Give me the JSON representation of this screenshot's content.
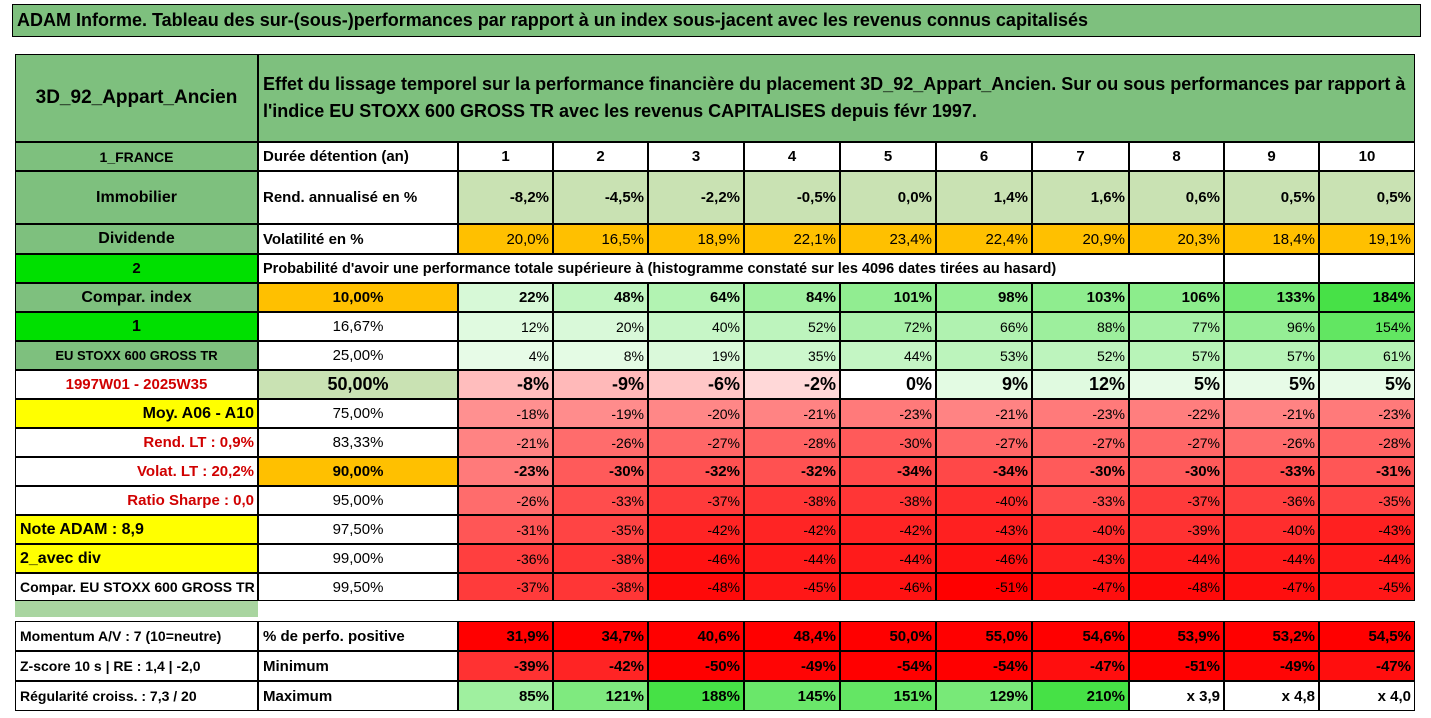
{
  "title": "ADAM Informe. Tableau des sur-(sous-)performances par rapport à un index sous-jacent avec les revenus connus capitalisés",
  "asset": "3D_92_Appart_Ancien",
  "description": "Effet du lissage temporel sur la performance financière du placement 3D_92_Appart_Ancien. Sur ou sous performances par rapport à l'indice EU STOXX 600 GROSS TR avec les revenus CAPITALISES depuis févr 1997.",
  "side": {
    "country": "1_FRANCE",
    "category": "Immobilier",
    "dividend": "Dividende",
    "two": "2",
    "compar_index": "Compar. index",
    "one": "1",
    "index_name": "EU STOXX 600 GROSS TR",
    "period": "1997W01 - 2025W35",
    "moy": "Moy. A06 - A10",
    "rend_lt": "Rend. LT :    0,9%",
    "volat_lt": "Volat. LT :    20,2%",
    "sharpe": "Ratio Sharpe :    0,0",
    "note": "Note ADAM : 8,9",
    "avec_div": "2_avec div",
    "compar_full": "Compar. EU STOXX 600 GROSS TR",
    "momentum": "Momentum A/V : 7 (10=neutre)",
    "zscore": "Z-score 10 s | RE : 1,4 | -2,0",
    "regularite": "Régularité croiss. : 7,3 / 20"
  },
  "labels": {
    "duree": "Durée détention (an)",
    "rend": "Rend. annualisé en %",
    "volat": "Volatilité en %",
    "proba": "Probabilité d'avoir une performance totale supérieure à (histogramme constaté sur les 4096 dates tirées au hasard)",
    "pct_pos": "% de perfo. positive",
    "minimum": "Minimum",
    "maximum": "Maximum"
  },
  "years": [
    "1",
    "2",
    "3",
    "4",
    "5",
    "6",
    "7",
    "8",
    "9",
    "10"
  ],
  "rend": [
    "-8,2%",
    "-4,5%",
    "-2,2%",
    "-0,5%",
    "0,0%",
    "1,4%",
    "1,6%",
    "0,6%",
    "0,5%",
    "0,5%"
  ],
  "volat": [
    "20,0%",
    "16,5%",
    "18,9%",
    "22,1%",
    "23,4%",
    "22,4%",
    "20,9%",
    "20,3%",
    "18,4%",
    "19,1%"
  ],
  "prob_rows": [
    {
      "threshold": "10,00%",
      "values": [
        "22%",
        "48%",
        "64%",
        "84%",
        "101%",
        "98%",
        "103%",
        "106%",
        "133%",
        "184%"
      ]
    },
    {
      "threshold": "16,67%",
      "values": [
        "12%",
        "20%",
        "40%",
        "52%",
        "72%",
        "66%",
        "88%",
        "77%",
        "96%",
        "154%"
      ]
    },
    {
      "threshold": "25,00%",
      "values": [
        "4%",
        "8%",
        "19%",
        "35%",
        "44%",
        "53%",
        "52%",
        "57%",
        "57%",
        "61%"
      ]
    },
    {
      "threshold": "50,00%",
      "values": [
        "-8%",
        "-9%",
        "-6%",
        "-2%",
        "0%",
        "9%",
        "12%",
        "5%",
        "5%",
        "5%"
      ]
    },
    {
      "threshold": "75,00%",
      "values": [
        "-18%",
        "-19%",
        "-20%",
        "-21%",
        "-23%",
        "-21%",
        "-23%",
        "-22%",
        "-21%",
        "-23%"
      ]
    },
    {
      "threshold": "83,33%",
      "values": [
        "-21%",
        "-26%",
        "-27%",
        "-28%",
        "-30%",
        "-27%",
        "-27%",
        "-27%",
        "-26%",
        "-28%"
      ]
    },
    {
      "threshold": "90,00%",
      "values": [
        "-23%",
        "-30%",
        "-32%",
        "-32%",
        "-34%",
        "-34%",
        "-30%",
        "-30%",
        "-33%",
        "-31%"
      ]
    },
    {
      "threshold": "95,00%",
      "values": [
        "-26%",
        "-33%",
        "-37%",
        "-38%",
        "-38%",
        "-40%",
        "-33%",
        "-37%",
        "-36%",
        "-35%"
      ]
    },
    {
      "threshold": "97,50%",
      "values": [
        "-31%",
        "-35%",
        "-42%",
        "-42%",
        "-42%",
        "-43%",
        "-40%",
        "-39%",
        "-40%",
        "-43%"
      ]
    },
    {
      "threshold": "99,00%",
      "values": [
        "-36%",
        "-38%",
        "-46%",
        "-44%",
        "-44%",
        "-46%",
        "-43%",
        "-44%",
        "-44%",
        "-44%"
      ]
    },
    {
      "threshold": "99,50%",
      "values": [
        "-37%",
        "-38%",
        "-48%",
        "-45%",
        "-46%",
        "-51%",
        "-47%",
        "-48%",
        "-47%",
        "-45%"
      ]
    }
  ],
  "pct_pos": [
    "31,9%",
    "34,7%",
    "40,6%",
    "48,4%",
    "50,0%",
    "55,0%",
    "54,6%",
    "53,9%",
    "53,2%",
    "54,5%"
  ],
  "minimum": [
    "-39%",
    "-42%",
    "-50%",
    "-49%",
    "-54%",
    "-54%",
    "-47%",
    "-51%",
    "-49%",
    "-47%"
  ],
  "maximum": [
    "85%",
    "121%",
    "188%",
    "145%",
    "151%",
    "129%",
    "210%",
    "x 3,9",
    "x 4,8",
    "x 4,0"
  ],
  "colors": {
    "header_green": "#7ec07e",
    "light_green": "#c9e2b3",
    "bright_green": "#00e000",
    "orange": "#ffc000",
    "yellow": "#ffff00",
    "red": "#ff0000",
    "red_text": "#d00000"
  }
}
